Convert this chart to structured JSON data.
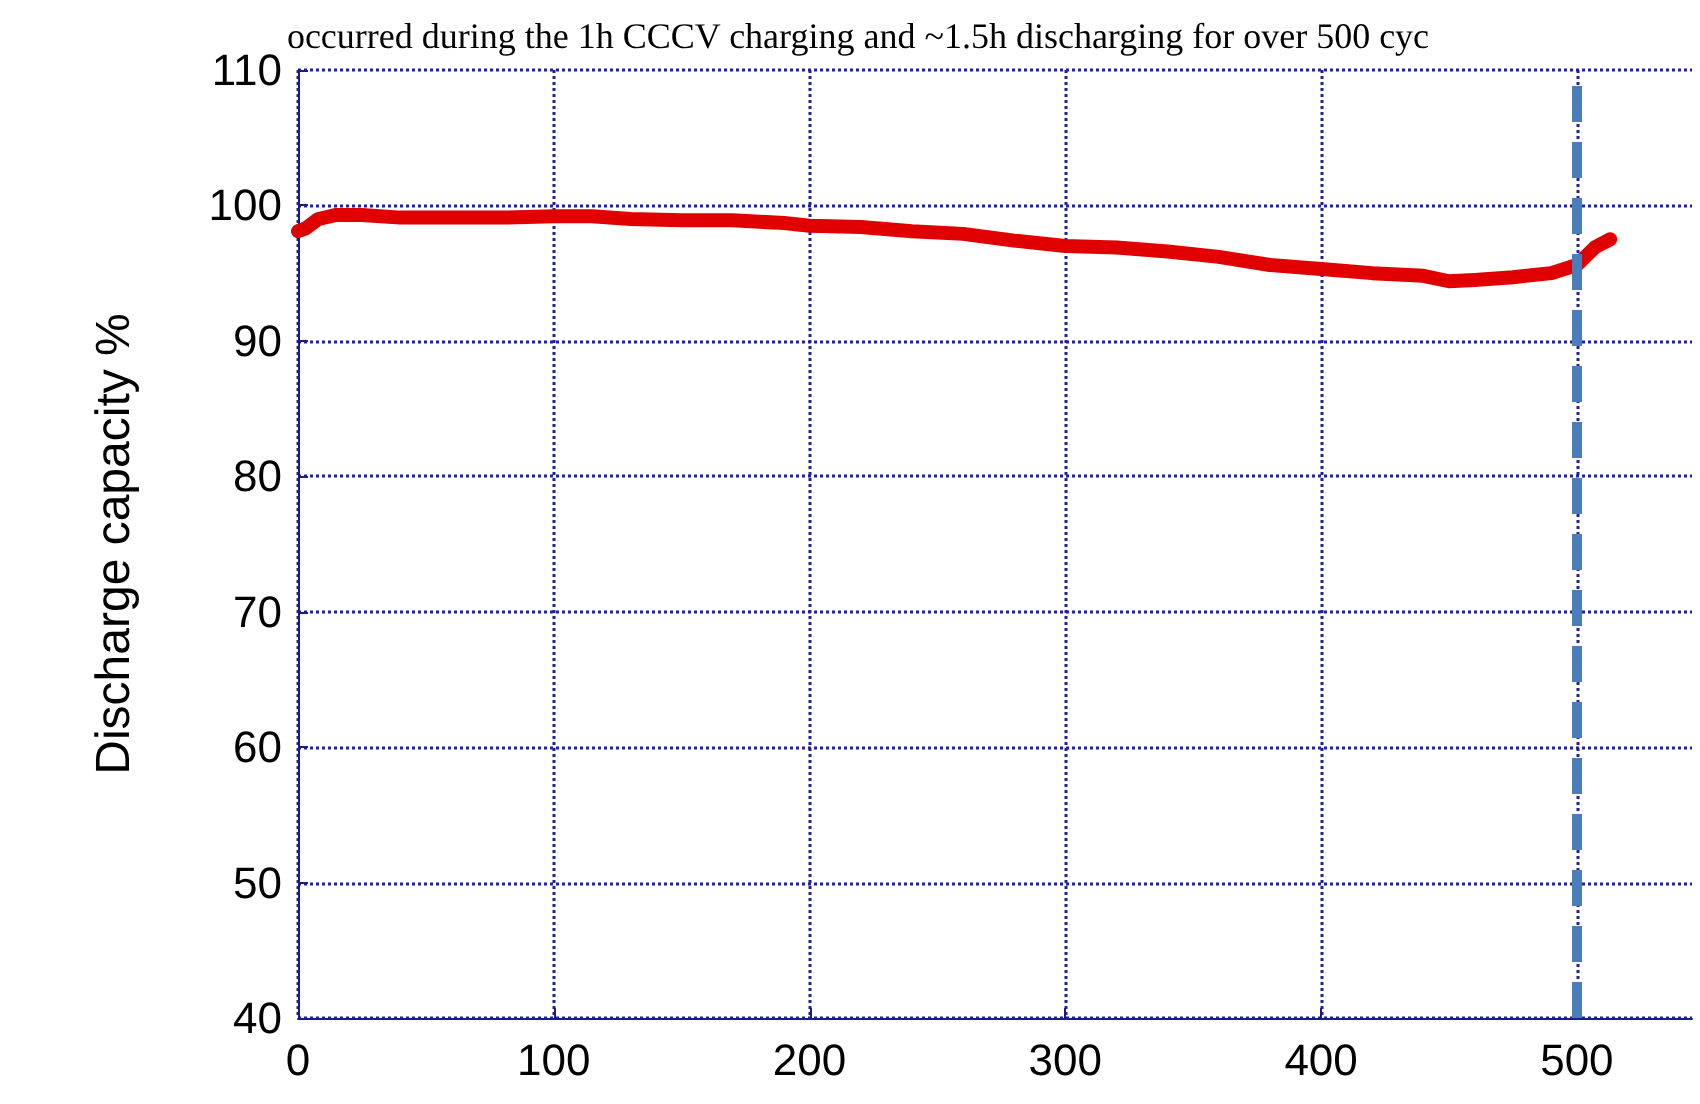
{
  "chart_data": {
    "type": "line",
    "title": "occurred during the 1h CCCV charging and ~1.5h discharging for over 500 cyc",
    "ylabel": "Discharge capacity %",
    "x": [
      0,
      3,
      8,
      15,
      25,
      40,
      60,
      80,
      100,
      115,
      130,
      150,
      170,
      190,
      200,
      220,
      240,
      260,
      280,
      300,
      320,
      340,
      360,
      380,
      400,
      420,
      440,
      450,
      460,
      475,
      490,
      500,
      507,
      513
    ],
    "series": [
      {
        "color": "#e00000",
        "values": [
          98.1,
          98.3,
          99.0,
          99.3,
          99.3,
          99.1,
          99.1,
          99.1,
          99.2,
          99.2,
          99.0,
          98.9,
          98.9,
          98.7,
          98.5,
          98.4,
          98.1,
          97.9,
          97.4,
          97.0,
          96.9,
          96.6,
          96.2,
          95.6,
          95.3,
          95.0,
          94.8,
          94.4,
          94.5,
          94.7,
          95.0,
          95.6,
          96.9,
          97.5
        ]
      }
    ],
    "xlim": [
      0,
      545
    ],
    "xticks": [
      0,
      100,
      200,
      300,
      400,
      500
    ],
    "ylim": [
      40,
      110
    ],
    "yticks": [
      40,
      50,
      60,
      70,
      80,
      90,
      100,
      110
    ],
    "grid": true,
    "line_style": "solid",
    "ref_lines": [
      {
        "axis": "x",
        "value": 500,
        "color": "#4a7ebb",
        "line_style": "dashed"
      }
    ]
  }
}
